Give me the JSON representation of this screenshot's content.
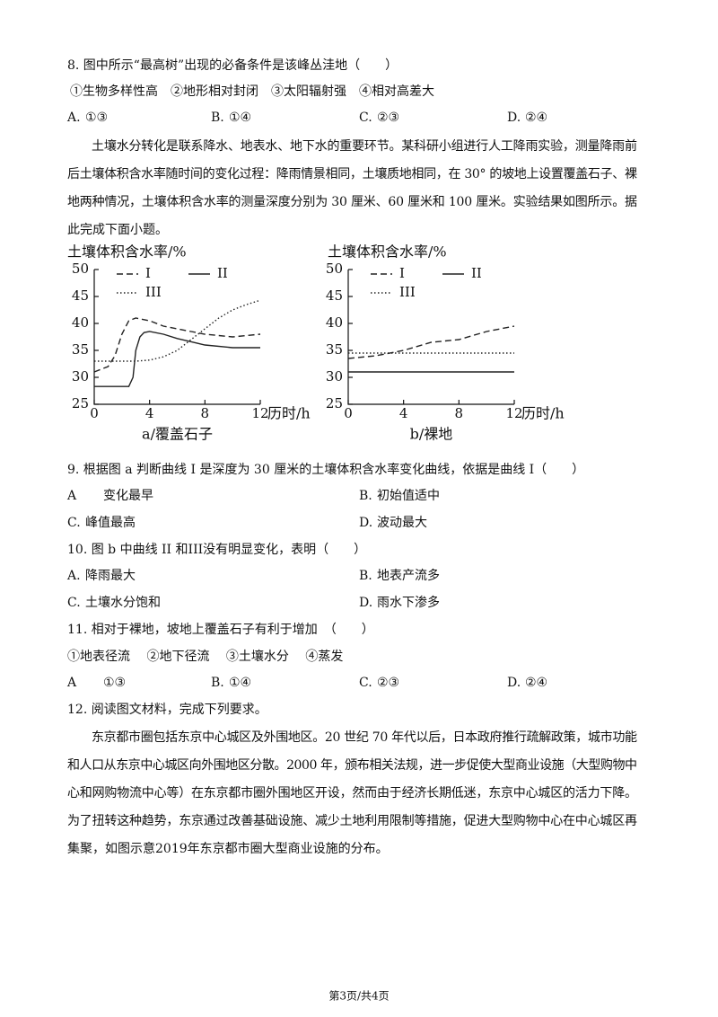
{
  "questions": [
    {
      "stem": "8. 图中所示“最高树”出现的必备条件是该峰丛洼地（　　）",
      "statements": "①生物多样性高　②地形相对封闭　③太阳辐射强　④相对高差大",
      "options": [
        {
          "label": "A.",
          "text": "①③"
        },
        {
          "label": "B.",
          "text": "①④"
        },
        {
          "label": "C.",
          "text": "②③"
        },
        {
          "label": "D.",
          "text": "②④"
        }
      ]
    },
    {
      "stem": "9. 根据图 a 判断曲线 I 是深度为  30  厘米的土壤体积含水率变化曲线，依据是曲线 I（　　）",
      "options": [
        {
          "label": "A",
          "text": "变化最早"
        },
        {
          "label": "B.",
          "text": "初始值适中"
        },
        {
          "label": "C.",
          "text": "峰值最高"
        },
        {
          "label": "D.",
          "text": "波动最大"
        }
      ]
    },
    {
      "stem": "10. 图 b 中曲线 II 和III没有明显变化，表明（　　）",
      "options": [
        {
          "label": "A.",
          "text": "降雨最大"
        },
        {
          "label": "B.",
          "text": "地表产流多"
        },
        {
          "label": "C.",
          "text": "土壤水分饱和"
        },
        {
          "label": "D.",
          "text": "雨水下渗多"
        }
      ]
    },
    {
      "stem": "11. 相对于裸地，坡地上覆盖石子有利于增加　（　　）",
      "statements": "①地表径流　 ②地下径流　 ③土壤水分　 ④蒸发",
      "options": [
        {
          "label": "A",
          "text": "①③"
        },
        {
          "label": "B.",
          "text": "①④"
        },
        {
          "label": "C.",
          "text": "②③"
        },
        {
          "label": "D.",
          "text": "②④"
        }
      ]
    },
    {
      "stem": "12. 阅读图文材料，完成下列要求。"
    }
  ],
  "passage1": [
    "土壤水分转化是联系降水、地表水、地下水的重要环节。某科研小组进行人工降雨实验，测量降雨前",
    "后土壤体积含水率随时间的变化过程：降雨情景相同，土壤质地相同，在 30° 的坡地上设置覆盖石子、裸",
    "地两种情况，土壤体积含水率的测量深度分别为  30  厘米、60  厘米和  100  厘米。实验结果如图所示。据",
    "此完成下面小题。"
  ],
  "passage2": [
    "东京都市圈包括东京中心城区及外围地区。20 世纪 70 年代以后，日本政府推行疏解政策，城市功能",
    "和人口从东京中心城区向外围地区分散。2000 年，颁布相关法规，进一步促使大型商业设施（大型购物中",
    "心和网购物流中心等）在东京都市圈外围地区开设，然而由于经济长期低迷，东京中心城区的活力下降。",
    "为了扭转这种趋势，东京通过改善基础设施、减少土地利用限制等措施，促进大型购物中心在中心城区再",
    "集聚，如图示意2019年东京都市圈大型商业设施的分布。"
  ],
  "footer": "第3页/共4页",
  "chart_data": [
    {
      "type": "line",
      "y_label": "土壤体积含水率/%",
      "x_label": "历时/h",
      "caption": "a/覆盖石子",
      "xlim": [
        0,
        12
      ],
      "xticks": [
        0,
        4,
        8,
        12
      ],
      "ylim": [
        25,
        50
      ],
      "yticks": [
        25,
        30,
        35,
        40,
        45,
        50
      ],
      "series": [
        {
          "name": "I",
          "color": "#222",
          "style": "dashed",
          "x": [
            0,
            1,
            1.5,
            2,
            2.5,
            3,
            4,
            5,
            6,
            7,
            8,
            10,
            12
          ],
          "values": [
            31,
            32,
            34,
            38,
            40.5,
            41,
            40.5,
            39.5,
            39,
            38.5,
            38,
            37.5,
            38
          ]
        },
        {
          "name": "II",
          "color": "#222",
          "style": "solid",
          "x": [
            0,
            2.5,
            2.8,
            3,
            3.3,
            3.6,
            4,
            5,
            6,
            8,
            10,
            12
          ],
          "values": [
            28.3,
            28.3,
            30,
            35,
            37.5,
            38.3,
            38.5,
            38,
            37.2,
            36,
            35.5,
            35.5
          ]
        },
        {
          "name": "III",
          "color": "#222",
          "style": "dotted",
          "x": [
            0,
            3,
            4,
            5,
            6,
            7,
            8,
            9,
            10,
            11,
            12
          ],
          "values": [
            33,
            33,
            33.2,
            33.8,
            35,
            37,
            39,
            41,
            42.5,
            43.5,
            44.3
          ]
        }
      ]
    },
    {
      "type": "line",
      "y_label": "土壤体积含水率/%",
      "x_label": "历时/h",
      "caption": "b/裸地",
      "xlim": [
        0,
        12
      ],
      "xticks": [
        0,
        4,
        8,
        12
      ],
      "ylim": [
        25,
        50
      ],
      "yticks": [
        25,
        30,
        35,
        40,
        45,
        50
      ],
      "series": [
        {
          "name": "I",
          "color": "#222",
          "style": "dashed",
          "x": [
            0,
            2,
            4,
            6,
            8,
            10,
            12
          ],
          "values": [
            33.5,
            34,
            35,
            36.5,
            37,
            38.5,
            39.5
          ]
        },
        {
          "name": "II",
          "color": "#222",
          "style": "solid",
          "x": [
            0,
            12
          ],
          "values": [
            31,
            31
          ]
        },
        {
          "name": "III",
          "color": "#222",
          "style": "dotted",
          "x": [
            0,
            12
          ],
          "values": [
            34.5,
            34.5
          ]
        }
      ]
    }
  ]
}
